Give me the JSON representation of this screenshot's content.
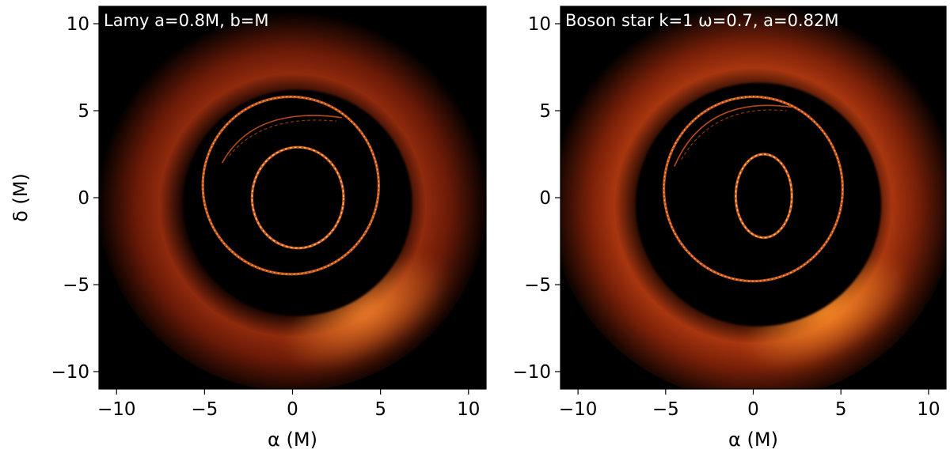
{
  "chart_data": [
    {
      "type": "heatmap",
      "title": "Lamy a=0.8M, b=M",
      "xlabel": "α (M)",
      "ylabel": "δ (M)",
      "xlim": [
        -11,
        11
      ],
      "ylim": [
        -11,
        11
      ],
      "xticks": [
        -10,
        -5,
        0,
        5,
        10
      ],
      "yticks": [
        -10,
        -5,
        0,
        5,
        10
      ],
      "xtick_labels": [
        "−10",
        "−5",
        "0",
        "5",
        "10"
      ],
      "ytick_labels": [
        "−10",
        "−5",
        "0",
        "5",
        "10"
      ],
      "colormap": "black-red-orange (afmhot-like)",
      "background_color": "#000000",
      "features": {
        "dark_disk": {
          "center": [
            0.3,
            -0.3
          ],
          "radius": 6.5
        },
        "diffuse_halo": {
          "inner_radius": 6.5,
          "outer_radius": 10.5,
          "brightest_side": "bottom-right"
        },
        "outer_ring": {
          "center": [
            -0.1,
            0.7
          ],
          "rx": 5.0,
          "ry": 5.1
        },
        "inner_ring": {
          "center": [
            0.3,
            0.0
          ],
          "rx": 2.6,
          "ry": 2.9
        },
        "arc": {
          "from": [
            -4.0,
            2.0
          ],
          "to": [
            2.8,
            4.6
          ]
        }
      },
      "grid": false
    },
    {
      "type": "heatmap",
      "title": "Boson star k=1 ω=0.7, a=0.82M",
      "xlabel": "α (M)",
      "ylabel": "",
      "xlim": [
        -11,
        11
      ],
      "ylim": [
        -11,
        11
      ],
      "xticks": [
        -10,
        -5,
        0,
        5,
        10
      ],
      "yticks": [
        -10,
        -5,
        0,
        5,
        10
      ],
      "xtick_labels": [
        "−10",
        "−5",
        "0",
        "5",
        "10"
      ],
      "ytick_labels": [
        "−10",
        "−5",
        "0",
        "5",
        "10"
      ],
      "colormap": "black-red-orange (afmhot-like)",
      "background_color": "#000000",
      "features": {
        "dark_disk": {
          "center": [
            0.3,
            -0.4
          ],
          "radius": 7.0
        },
        "diffuse_halo": {
          "inner_radius": 7.0,
          "outer_radius": 11.0,
          "brightest_side": "bottom-right"
        },
        "outer_ring": {
          "center": [
            0.0,
            0.5
          ],
          "rx": 5.1,
          "ry": 5.3
        },
        "inner_ring": {
          "center": [
            0.6,
            0.1
          ],
          "rx": 1.6,
          "ry": 2.4
        },
        "arc": {
          "from": [
            -4.5,
            1.8
          ],
          "to": [
            2.2,
            5.2
          ]
        }
      },
      "grid": false
    }
  ]
}
